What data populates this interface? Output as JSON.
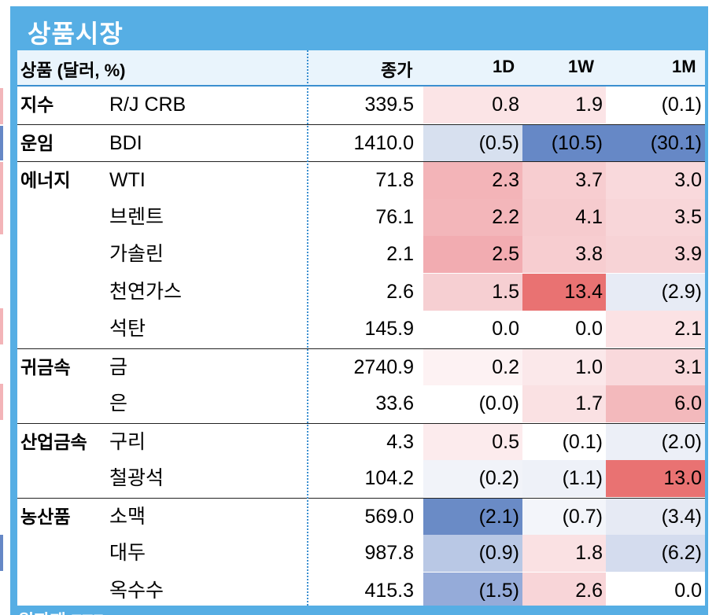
{
  "title": "상품시장",
  "header": {
    "col_item": "상품 (달러, %)",
    "col_close": "종가",
    "col_1d": "1D",
    "col_1w": "1W",
    "col_1m": "1M"
  },
  "rows": [
    {
      "category": "지수",
      "name": "R/J CRB",
      "close": "339.5",
      "d1": "0.8",
      "w1": "1.9",
      "m1": "(0.1)",
      "c1": "#fbe4e6",
      "c2": "#fbe4e6",
      "c3": "#ffffff",
      "group_start": true
    },
    {
      "category": "운임",
      "name": "BDI",
      "close": "1410.0",
      "d1": "(0.5)",
      "w1": "(10.5)",
      "m1": "(30.1)",
      "c1": "#d7e0ef",
      "c2": "#6688c6",
      "c3": "#6688c6",
      "group_start": true
    },
    {
      "category": "에너지",
      "name": "WTI",
      "close": "71.8",
      "d1": "2.3",
      "w1": "3.7",
      "m1": "3.0",
      "c1": "#f3b4b8",
      "c2": "#f7cdd0",
      "c3": "#f9d9dc",
      "group_start": true
    },
    {
      "category": "",
      "name": "브렌트",
      "close": "76.1",
      "d1": "2.2",
      "w1": "4.1",
      "m1": "3.5",
      "c1": "#f3b6ba",
      "c2": "#f6cbce",
      "c3": "#f8d6d9",
      "group_start": false
    },
    {
      "category": "",
      "name": "가솔린",
      "close": "2.1",
      "d1": "2.5",
      "w1": "3.8",
      "m1": "3.9",
      "c1": "#f2acb1",
      "c2": "#f7cdd0",
      "c3": "#f7d3d6",
      "group_start": false
    },
    {
      "category": "",
      "name": "천연가스",
      "close": "2.6",
      "d1": "1.5",
      "w1": "13.4",
      "m1": "(2.9)",
      "c1": "#f6cfd2",
      "c2": "#e97272",
      "c3": "#e7ebf5",
      "group_start": false
    },
    {
      "category": "",
      "name": "석탄",
      "close": "145.9",
      "d1": "0.0",
      "w1": "0.0",
      "m1": "2.1",
      "c1": "#ffffff",
      "c2": "#ffffff",
      "c3": "#fbe2e4",
      "group_start": false
    },
    {
      "category": "귀금속",
      "name": "금",
      "close": "2740.9",
      "d1": "0.2",
      "w1": "1.0",
      "m1": "3.1",
      "c1": "#fdf2f3",
      "c2": "#fbe8ea",
      "c3": "#f9d9dc",
      "group_start": true
    },
    {
      "category": "",
      "name": "은",
      "close": "33.6",
      "d1": "(0.0)",
      "w1": "1.7",
      "m1": "6.0",
      "c1": "#ffffff",
      "c2": "#fae1e3",
      "c3": "#f3b9bc",
      "group_start": false
    },
    {
      "category": "산업금속",
      "name": "구리",
      "close": "4.3",
      "d1": "0.5",
      "w1": "(0.1)",
      "m1": "(2.0)",
      "c1": "#fcebed",
      "c2": "#ffffff",
      "c3": "#eceff7",
      "group_start": true
    },
    {
      "category": "",
      "name": "철광석",
      "close": "104.2",
      "d1": "(0.2)",
      "w1": "(1.1)",
      "m1": "13.0",
      "c1": "#f1f3f9",
      "c2": "#eef1f8",
      "c3": "#e97272",
      "group_start": false
    },
    {
      "category": "농산품",
      "name": "소맥",
      "close": "569.0",
      "d1": "(2.1)",
      "w1": "(0.7)",
      "m1": "(3.4)",
      "c1": "#6a8bc6",
      "c2": "#f3f5fa",
      "c3": "#e6eaf4",
      "group_start": true
    },
    {
      "category": "",
      "name": "대두",
      "close": "987.8",
      "d1": "(0.9)",
      "w1": "1.8",
      "m1": "(6.2)",
      "c1": "#b9c8e5",
      "c2": "#fae1e3",
      "c3": "#d4dcee",
      "group_start": false
    },
    {
      "category": "",
      "name": "옥수수",
      "close": "415.3",
      "d1": "(1.5)",
      "w1": "2.6",
      "m1": "0.0",
      "c1": "#95abd9",
      "c2": "#f8d5d8",
      "c3": "#ffffff",
      "group_start": false
    }
  ],
  "next_section_title": "원자재 ETF"
}
